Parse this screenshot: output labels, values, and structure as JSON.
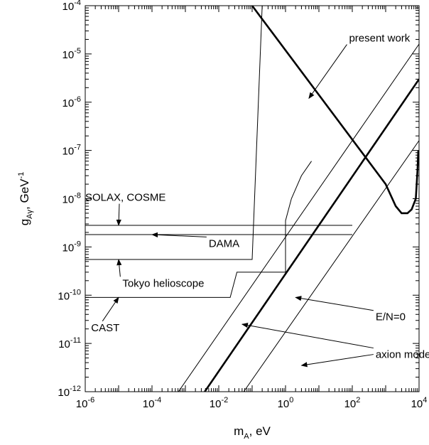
{
  "chart_data": {
    "type": "line",
    "xlabel": {
      "base": "m",
      "sub": "A",
      "rest": ", eV"
    },
    "ylabel": {
      "base": "g",
      "sub": "Aγ",
      "rest": ", GeV",
      "sup": "-1"
    },
    "x_scale": "log",
    "y_scale": "log",
    "xlim": [
      1e-06,
      10000.0
    ],
    "ylim": [
      1e-12,
      0.0001
    ],
    "x_ticks": [
      {
        "base": "10",
        "exp": "-6"
      },
      {
        "base": "10",
        "exp": "-4"
      },
      {
        "base": "10",
        "exp": "-2"
      },
      {
        "base": "10",
        "exp": "0"
      },
      {
        "base": "10",
        "exp": "2"
      },
      {
        "base": "10",
        "exp": "4"
      }
    ],
    "y_ticks": [
      {
        "base": "10",
        "exp": "-12"
      },
      {
        "base": "10",
        "exp": "-11"
      },
      {
        "base": "10",
        "exp": "-10"
      },
      {
        "base": "10",
        "exp": "-9"
      },
      {
        "base": "10",
        "exp": "-8"
      },
      {
        "base": "10",
        "exp": "-7"
      },
      {
        "base": "10",
        "exp": "-6"
      },
      {
        "base": "10",
        "exp": "-5"
      },
      {
        "base": "10",
        "exp": "-4"
      }
    ],
    "grid": false,
    "series": [
      {
        "name": "present work",
        "style": "thick",
        "points": [
          [
            0.1,
            0.0001
          ],
          [
            1000,
            2e-08
          ],
          [
            2000,
            7e-09
          ],
          [
            3000,
            5e-09
          ],
          [
            4500,
            5e-09
          ],
          [
            6000,
            6e-09
          ],
          [
            8000,
            1e-08
          ],
          [
            9000,
            4e-08
          ],
          [
            9500,
            1e-07
          ]
        ]
      },
      {
        "name": "SOLAX, COSME",
        "style": "thin",
        "points": [
          [
            1e-06,
            2.8e-09
          ],
          [
            100,
            2.8e-09
          ]
        ]
      },
      {
        "name": "DAMA",
        "style": "thin",
        "points": [
          [
            1e-06,
            1.8e-09
          ],
          [
            100,
            1.8e-09
          ]
        ]
      },
      {
        "name": "Tokyo helioscope",
        "style": "thin",
        "points": [
          [
            1e-06,
            5.5e-10
          ],
          [
            0.1,
            5.5e-10
          ],
          [
            0.2,
            0.0001
          ]
        ]
      },
      {
        "name": "CAST",
        "style": "thin",
        "points": [
          [
            1e-06,
            9e-11
          ],
          [
            0.022,
            9e-11
          ],
          [
            0.035,
            3e-10
          ],
          [
            1,
            3e-10
          ],
          [
            1,
            3.5e-09
          ],
          [
            1.5,
            1e-08
          ],
          [
            3,
            3e-08
          ],
          [
            6,
            6e-08
          ]
        ]
      },
      {
        "name": "E/N=0",
        "style": "thick",
        "points": [
          [
            0.0038,
            1e-12
          ],
          [
            10000,
            3e-06
          ]
        ]
      },
      {
        "name": "axion models",
        "style": "thin",
        "points": [
          [
            0.00062,
            1e-12
          ],
          [
            10000,
            1.6e-05
          ]
        ]
      },
      {
        "name": "axion models",
        "style": "thin",
        "points": [
          [
            0.056,
            1e-12
          ],
          [
            10000,
            1.6e-07
          ]
        ]
      }
    ],
    "annotations": [
      {
        "text": "present work",
        "x": 80,
        "y": 1.8e-05,
        "arrow_to": [
          5,
          1.2e-06
        ]
      },
      {
        "text": "SOLAX, COSME",
        "x": 1e-06,
        "y": 9e-09,
        "arrow_to": [
          1e-05,
          2.8e-09
        ]
      },
      {
        "text": "DAMA",
        "x": 0.005,
        "y": 1e-09,
        "arrow_to": [
          0.0001,
          1.8e-09
        ]
      },
      {
        "text": "Tokyo helioscope",
        "x": 1.3e-05,
        "y": 1.5e-10,
        "arrow_to": [
          1e-05,
          5.5e-10
        ]
      },
      {
        "text": "CAST",
        "x": 1.5e-06,
        "y": 1.8e-11,
        "arrow_to": [
          1e-05,
          9e-11
        ]
      },
      {
        "text": "E/N=0",
        "x": 500,
        "y": 3e-11,
        "arrow_to": [
          2,
          9e-11
        ]
      },
      {
        "text": "axion models",
        "x": 500,
        "y": 5e-12,
        "arrow_to": [
          0.05,
          2.5e-11
        ]
      },
      {
        "text": "",
        "x": 500,
        "y": 5e-12,
        "arrow_to": [
          3,
          3.5e-12
        ]
      }
    ]
  }
}
